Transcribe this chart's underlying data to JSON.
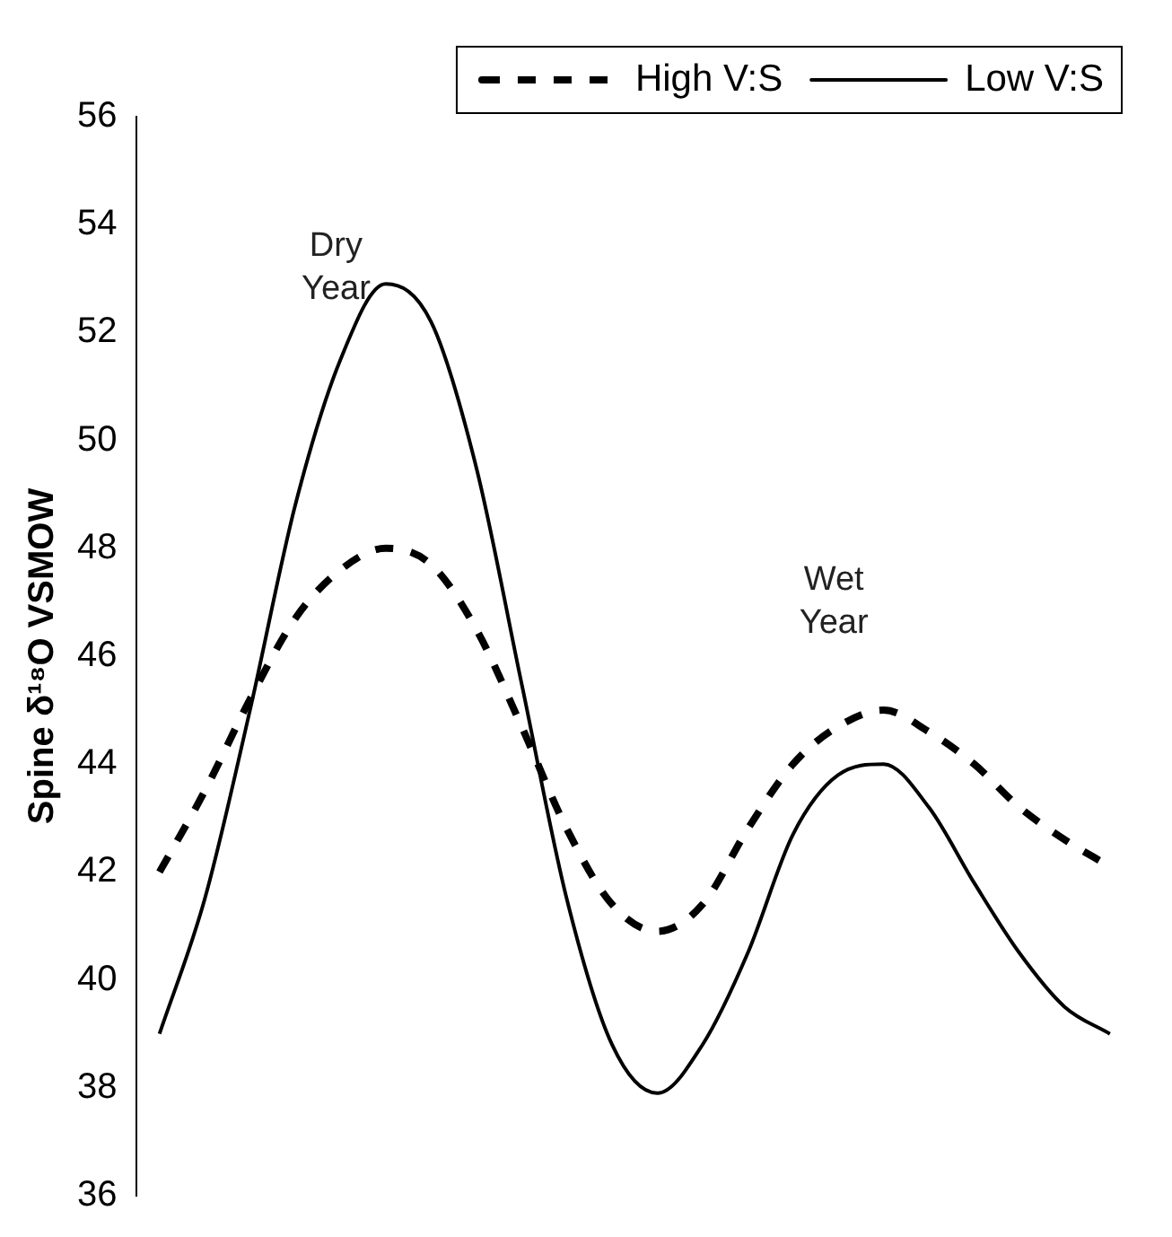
{
  "chart_data": {
    "type": "line",
    "ylabel": "Spine δ¹⁸O VSMOW",
    "categories": [
      null,
      null,
      null,
      null,
      null,
      null,
      null,
      null,
      null,
      null,
      null,
      null,
      null,
      null,
      null,
      null,
      null,
      null,
      null,
      null,
      null,
      null
    ],
    "series": [
      {
        "name": "High V:S",
        "color": "#000000",
        "line_style": "dashed",
        "values": [
          42,
          43.5,
          45.2,
          46.7,
          47.6,
          48,
          47.7,
          46.5,
          44.7,
          42.8,
          41.4,
          40.9,
          41.4,
          42.8,
          44,
          44.7,
          45,
          44.6,
          44,
          43.2,
          42.6,
          42.1
        ]
      },
      {
        "name": "Low V:S",
        "color": "#000000",
        "line_style": "solid",
        "values": [
          39,
          41.5,
          45,
          48.8,
          51.5,
          52.9,
          52.2,
          49.5,
          45.5,
          41.5,
          38.8,
          37.9,
          38.8,
          40.5,
          42.7,
          43.8,
          44,
          43.2,
          41.8,
          40.5,
          39.5,
          39
        ]
      }
    ],
    "ylim": [
      36,
      56
    ],
    "yticks": [
      36,
      38,
      40,
      42,
      44,
      46,
      48,
      50,
      52,
      54,
      56
    ],
    "annotations": [
      "Dry\nYear",
      "Wet\nYear"
    ],
    "grid": false,
    "legend": "top right",
    "marker": "none",
    "tick_labels": "y"
  }
}
